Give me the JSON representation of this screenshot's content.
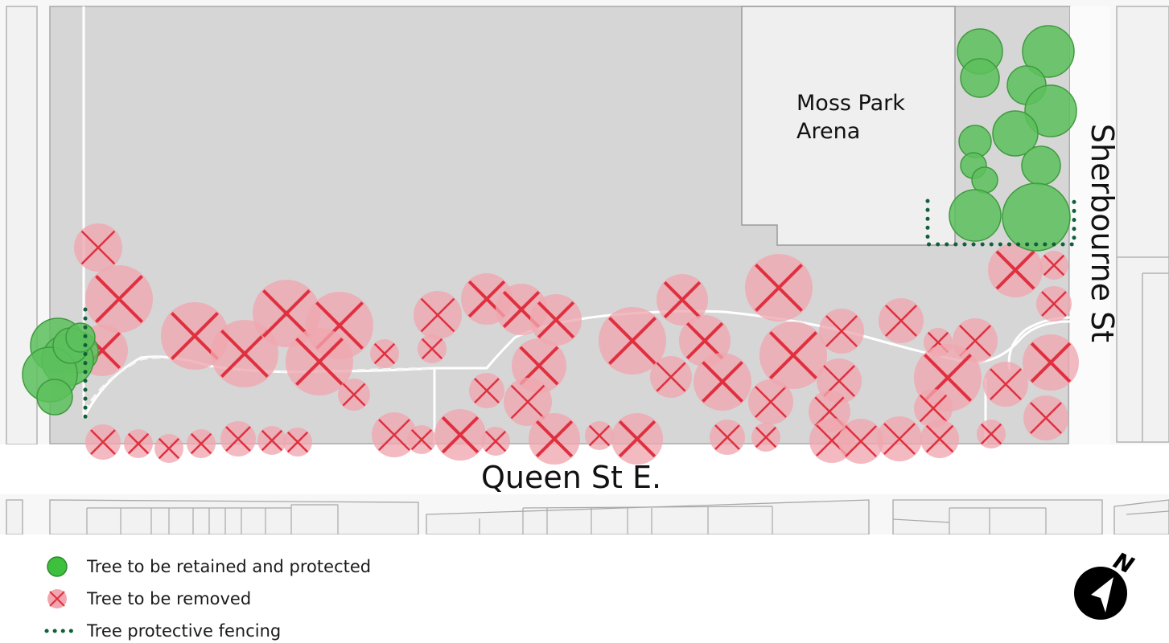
{
  "labels": {
    "street_south": "Queen St E.",
    "street_east": "Sherbourne St",
    "building_line1": "Moss Park",
    "building_line2": "Arena"
  },
  "legend": [
    {
      "symbol": "tree-retained",
      "label": "Tree to be retained and protected"
    },
    {
      "symbol": "tree-removed",
      "label": "Tree to be removed"
    },
    {
      "symbol": "protective-fencing",
      "label": "Tree protective fencing"
    }
  ],
  "north_arrow": {
    "label": "N"
  },
  "colors": {
    "retained_fill": "#5cc15c",
    "retained_stroke": "#3f9a3f",
    "removed_fill": "#f0a7b0",
    "removed_cross": "#e0303f",
    "fencing": "#11603a",
    "park": "#d6d6d6",
    "arena": "#efefef",
    "path": "#ffffff"
  },
  "tree_counts": {
    "retained": 19,
    "removed": 70
  }
}
